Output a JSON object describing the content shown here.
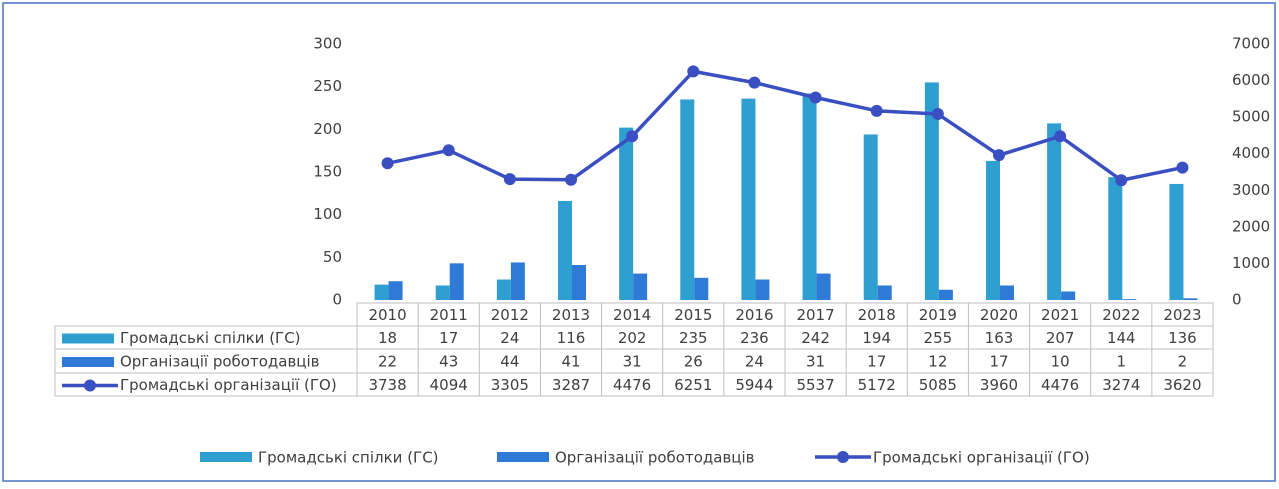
{
  "chart_data": {
    "type": "bar_line",
    "categories": [
      "2010",
      "2011",
      "2012",
      "2013",
      "2014",
      "2015",
      "2016",
      "2017",
      "2018",
      "2019",
      "2020",
      "2021",
      "2022",
      "2023"
    ],
    "series": [
      {
        "name": "Громадські спілки (ГС)",
        "color": "#2e9fd0",
        "type": "bar",
        "values": [
          18,
          17,
          24,
          116,
          202,
          235,
          236,
          242,
          194,
          255,
          163,
          207,
          144,
          136
        ]
      },
      {
        "name": "Організації роботодавців",
        "color": "#2f7ad6",
        "type": "bar",
        "values": [
          22,
          43,
          44,
          41,
          31,
          26,
          24,
          31,
          17,
          12,
          17,
          10,
          1,
          2
        ]
      },
      {
        "name": "Громадські організації (ГО)",
        "color": "#3a4fc2",
        "type": "line",
        "axis": "y2",
        "values": [
          3738,
          4094,
          3305,
          3287,
          4476,
          6251,
          5944,
          5537,
          5172,
          5085,
          3960,
          4476,
          3274,
          3620
        ]
      }
    ],
    "ylim": [
      0,
      300
    ],
    "yticks": [
      0,
      50,
      100,
      150,
      200,
      250,
      300
    ],
    "y2lim": [
      0,
      7000
    ],
    "y2ticks": [
      0,
      1000,
      2000,
      3000,
      4000,
      5000,
      6000,
      7000
    ],
    "grid": false,
    "legend": "bottom"
  }
}
